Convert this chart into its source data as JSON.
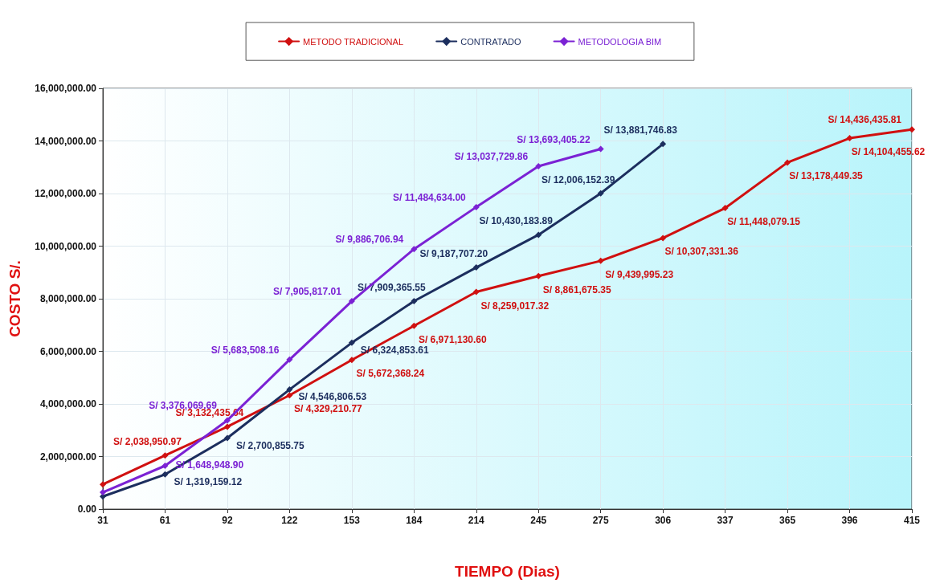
{
  "chart_data": {
    "type": "line",
    "xlabel": "TIEMPO (Dias)",
    "ylabel": "COSTO S/.",
    "categories": [
      "31",
      "61",
      "92",
      "122",
      "153",
      "184",
      "214",
      "245",
      "275",
      "306",
      "337",
      "365",
      "396",
      "415"
    ],
    "series": [
      {
        "name": "METODO TRADICIONAL",
        "color": "#d01010",
        "values": [
          940000,
          2038950.97,
          3132435.64,
          4329210.77,
          5672368.24,
          6971130.6,
          8259017.32,
          8861675.35,
          9439995.23,
          10307331.36,
          11448079.15,
          13178449.35,
          14104455.62,
          14436435.81
        ],
        "value_labels": [
          null,
          "S/ 2,038,950.97",
          "S/ 3,132,435.64",
          "S/ 4,329,210.77",
          "S/ 5,672,368.24",
          "S/ 6,971,130.60",
          "S/ 8,259,017.32",
          "S/ 8,861,675.35",
          "S/ 9,439,995.23",
          "S/ 10,307,331.36",
          "S/ 11,448,079.15",
          "S/ 13,178,449.35",
          "S/ 14,104,455.62",
          "S/ 14,436,435.81"
        ]
      },
      {
        "name": "CONTRATADO",
        "color": "#1c2e5e",
        "values": [
          480000,
          1319159.12,
          2700855.75,
          4546806.53,
          6324853.61,
          7909365.55,
          9187707.2,
          10430183.89,
          12006152.39,
          13881746.83,
          null,
          null,
          null,
          null
        ],
        "value_labels": [
          null,
          "S/ 1,319,159.12",
          "S/ 2,700,855.75",
          "S/ 4,546,806.53",
          "S/ 6,324,853.61",
          "S/ 7,909,365.55",
          "S/ 9,187,707.20",
          "S/ 10,430,183.89",
          "S/ 12,006,152.39",
          "S/ 13,881,746.83",
          null,
          null,
          null,
          null
        ]
      },
      {
        "name": "METODOLOGIA BIM",
        "color": "#7b22d4",
        "values": [
          640000,
          1648948.9,
          3376069.69,
          5683508.16,
          7905817.01,
          9886706.94,
          11484634.0,
          13037729.86,
          13693405.22,
          null,
          null,
          null,
          null,
          null
        ],
        "value_labels": [
          null,
          "S/ 1,648,948.90",
          "S/ 3,376,069.69",
          "S/ 5,683,508.16",
          "S/ 7,905,817.01",
          "S/ 9,886,706.94",
          "S/ 11,484,634.00",
          "S/ 13,037,729.86",
          "S/ 13,693,405.22",
          null,
          null,
          null,
          null,
          null
        ]
      }
    ],
    "ylim": [
      0,
      16000000
    ],
    "yticks": [
      {
        "value": 0,
        "label": "0.00"
      },
      {
        "value": 2000000,
        "label": "2,000,000.00"
      },
      {
        "value": 4000000,
        "label": "4,000,000.00"
      },
      {
        "value": 6000000,
        "label": "6,000,000.00"
      },
      {
        "value": 8000000,
        "label": "8,000,000.00"
      },
      {
        "value": 10000000,
        "label": "10,000,000.00"
      },
      {
        "value": 12000000,
        "label": "12,000,000.00"
      },
      {
        "value": 14000000,
        "label": "14,000,000.00"
      },
      {
        "value": 16000000,
        "label": "16,000,000.00"
      }
    ],
    "grid": true,
    "legend": "top",
    "marker": "diamond",
    "line_style": "solid"
  }
}
